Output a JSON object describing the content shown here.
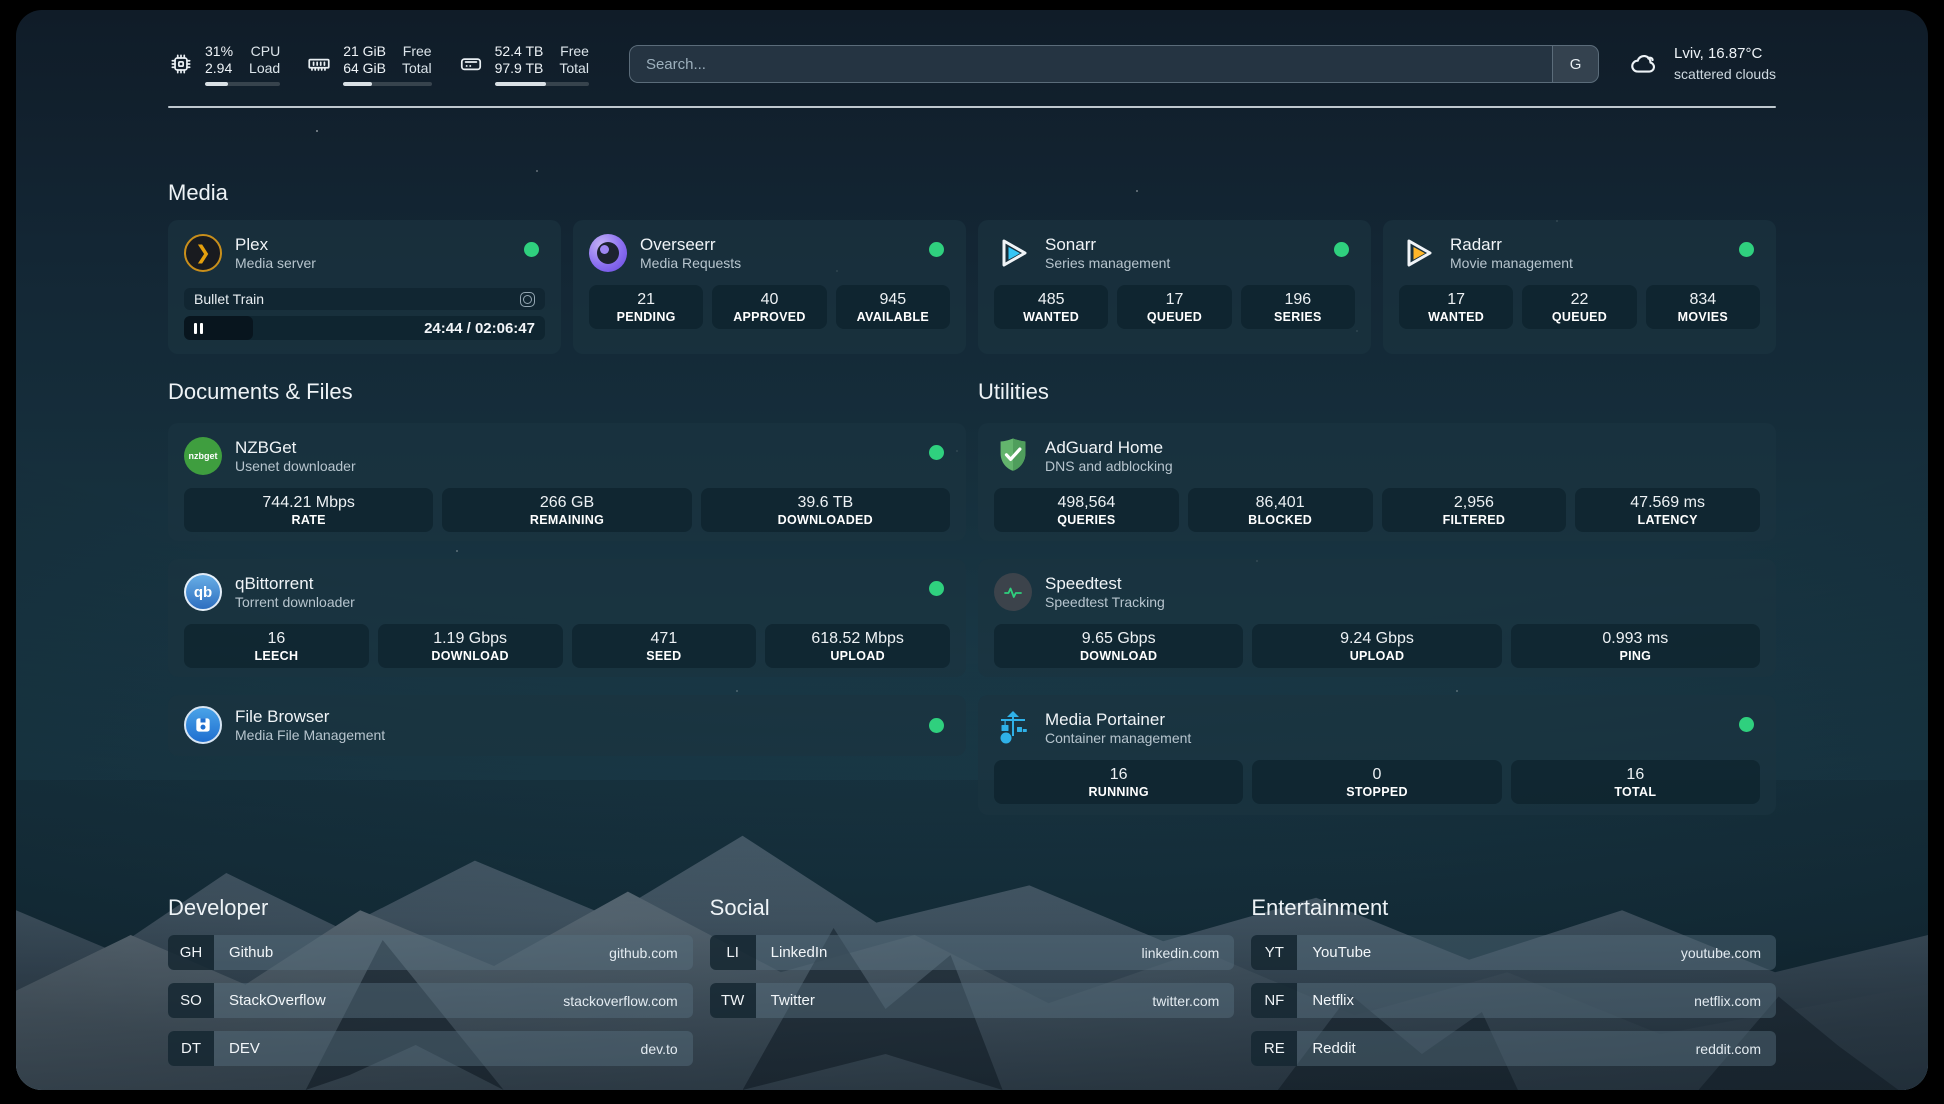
{
  "colors": {
    "status_online": "#2fd07e",
    "plex_amber": "#e5a00d",
    "sonarr_cyan": "#35c5f4",
    "radarr_amber": "#ffb629",
    "portainer_blue": "#2fb1e8"
  },
  "topbar": {
    "stats": [
      {
        "icon": "cpu-icon",
        "value_top": "31%",
        "value_bottom": "2.94",
        "label_top": "CPU",
        "label_bottom": "Load",
        "progress_pct": 31
      },
      {
        "icon": "ram-icon",
        "value_top": "21 GiB",
        "value_bottom": "64 GiB",
        "label_top": "Free",
        "label_bottom": "Total",
        "progress_pct": 33
      },
      {
        "icon": "disk-icon",
        "value_top": "52.4 TB",
        "value_bottom": "97.9 TB",
        "label_top": "Free",
        "label_bottom": "Total",
        "progress_pct": 54
      }
    ],
    "search": {
      "placeholder": "Search...",
      "engine_button": "G"
    },
    "weather": {
      "icon": "cloud-icon",
      "location": "Lviv, 16.87°C",
      "condition": "scattered clouds"
    }
  },
  "sections": {
    "media": {
      "title": "Media",
      "plex": {
        "name": "Plex",
        "description": "Media server",
        "online": true,
        "now_playing": {
          "title": "Bullet Train",
          "time": "24:44 / 02:06:47",
          "progress_pct": 19
        }
      },
      "overseerr": {
        "name": "Overseerr",
        "description": "Media Requests",
        "online": true,
        "stats": [
          {
            "value": "21",
            "label": "PENDING"
          },
          {
            "value": "40",
            "label": "APPROVED"
          },
          {
            "value": "945",
            "label": "AVAILABLE"
          }
        ]
      },
      "sonarr": {
        "name": "Sonarr",
        "description": "Series management",
        "online": true,
        "stats": [
          {
            "value": "485",
            "label": "WANTED"
          },
          {
            "value": "17",
            "label": "QUEUED"
          },
          {
            "value": "196",
            "label": "SERIES"
          }
        ]
      },
      "radarr": {
        "name": "Radarr",
        "description": "Movie management",
        "online": true,
        "stats": [
          {
            "value": "17",
            "label": "WANTED"
          },
          {
            "value": "22",
            "label": "QUEUED"
          },
          {
            "value": "834",
            "label": "MOVIES"
          }
        ]
      }
    },
    "documents": {
      "title": "Documents & Files",
      "nzbget": {
        "name": "NZBGet",
        "description": "Usenet downloader",
        "online": true,
        "stats": [
          {
            "value": "744.21 Mbps",
            "label": "RATE"
          },
          {
            "value": "266 GB",
            "label": "REMAINING"
          },
          {
            "value": "39.6 TB",
            "label": "DOWNLOADED"
          }
        ]
      },
      "qbittorrent": {
        "name": "qBittorrent",
        "description": "Torrent downloader",
        "online": true,
        "stats": [
          {
            "value": "16",
            "label": "LEECH"
          },
          {
            "value": "1.19 Gbps",
            "label": "DOWNLOAD"
          },
          {
            "value": "471",
            "label": "SEED"
          },
          {
            "value": "618.52 Mbps",
            "label": "UPLOAD"
          }
        ]
      },
      "filebrowser": {
        "name": "File Browser",
        "description": "Media File Management",
        "online": true
      }
    },
    "utilities": {
      "title": "Utilities",
      "adguard": {
        "name": "AdGuard Home",
        "description": "DNS and adblocking",
        "online": false,
        "stats": [
          {
            "value": "498,564",
            "label": "QUERIES"
          },
          {
            "value": "86,401",
            "label": "BLOCKED"
          },
          {
            "value": "2,956",
            "label": "FILTERED"
          },
          {
            "value": "47.569 ms",
            "label": "LATENCY"
          }
        ]
      },
      "speedtest": {
        "name": "Speedtest",
        "description": "Speedtest Tracking",
        "online": false,
        "stats": [
          {
            "value": "9.65 Gbps",
            "label": "DOWNLOAD"
          },
          {
            "value": "9.24 Gbps",
            "label": "UPLOAD"
          },
          {
            "value": "0.993 ms",
            "label": "PING"
          }
        ]
      },
      "portainer": {
        "name": "Media Portainer",
        "description": "Container management",
        "online": true,
        "stats": [
          {
            "value": "16",
            "label": "RUNNING"
          },
          {
            "value": "0",
            "label": "STOPPED"
          },
          {
            "value": "16",
            "label": "TOTAL"
          }
        ]
      }
    },
    "bookmarks": [
      {
        "title": "Developer",
        "links": [
          {
            "abbr": "GH",
            "name": "Github",
            "url": "github.com"
          },
          {
            "abbr": "SO",
            "name": "StackOverflow",
            "url": "stackoverflow.com"
          },
          {
            "abbr": "DT",
            "name": "DEV",
            "url": "dev.to"
          }
        ]
      },
      {
        "title": "Social",
        "links": [
          {
            "abbr": "LI",
            "name": "LinkedIn",
            "url": "linkedin.com"
          },
          {
            "abbr": "TW",
            "name": "Twitter",
            "url": "twitter.com"
          }
        ]
      },
      {
        "title": "Entertainment",
        "links": [
          {
            "abbr": "YT",
            "name": "YouTube",
            "url": "youtube.com"
          },
          {
            "abbr": "NF",
            "name": "Netflix",
            "url": "netflix.com"
          },
          {
            "abbr": "RE",
            "name": "Reddit",
            "url": "reddit.com"
          }
        ]
      }
    ]
  }
}
